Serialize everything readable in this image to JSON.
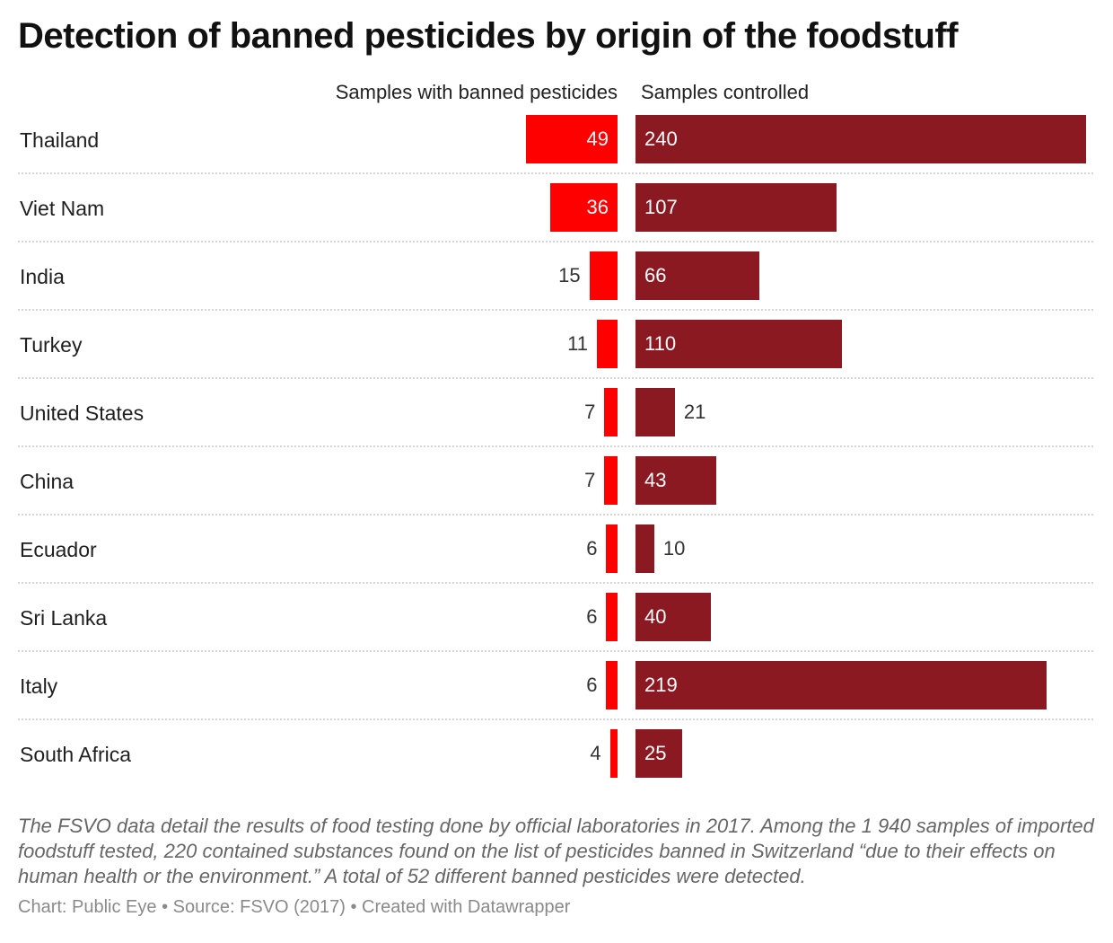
{
  "chart_data": {
    "type": "bar",
    "title": "Detection of banned pesticides by origin of the foodstuff",
    "categories": [
      "Thailand",
      "Viet Nam",
      "India",
      "Turkey",
      "United States",
      "China",
      "Ecuador",
      "Sri Lanka",
      "Italy",
      "South Africa"
    ],
    "series": [
      {
        "name": "Samples with banned pesticides",
        "values": [
          49,
          36,
          15,
          11,
          7,
          7,
          6,
          6,
          6,
          4
        ],
        "color": "#ff0000"
      },
      {
        "name": "Samples controlled",
        "values": [
          240,
          107,
          66,
          110,
          21,
          43,
          10,
          40,
          219,
          25
        ],
        "color": "#8a1922"
      }
    ],
    "xlim": [
      0,
      240
    ],
    "grid": false,
    "legend": "top"
  },
  "note": "The FSVO data detail the results of food testing done by official laboratories in 2017. Among the 1 940 samples of imported foodstuff tested, 220 contained substances found on the list of pesticides banned in Switzerland “due to their effects on human health or the environment.” A total of 52 different banned pesticides were detected.",
  "footer": "Chart: Public Eye • Source: FSVO (2017) • Created with Datawrapper"
}
